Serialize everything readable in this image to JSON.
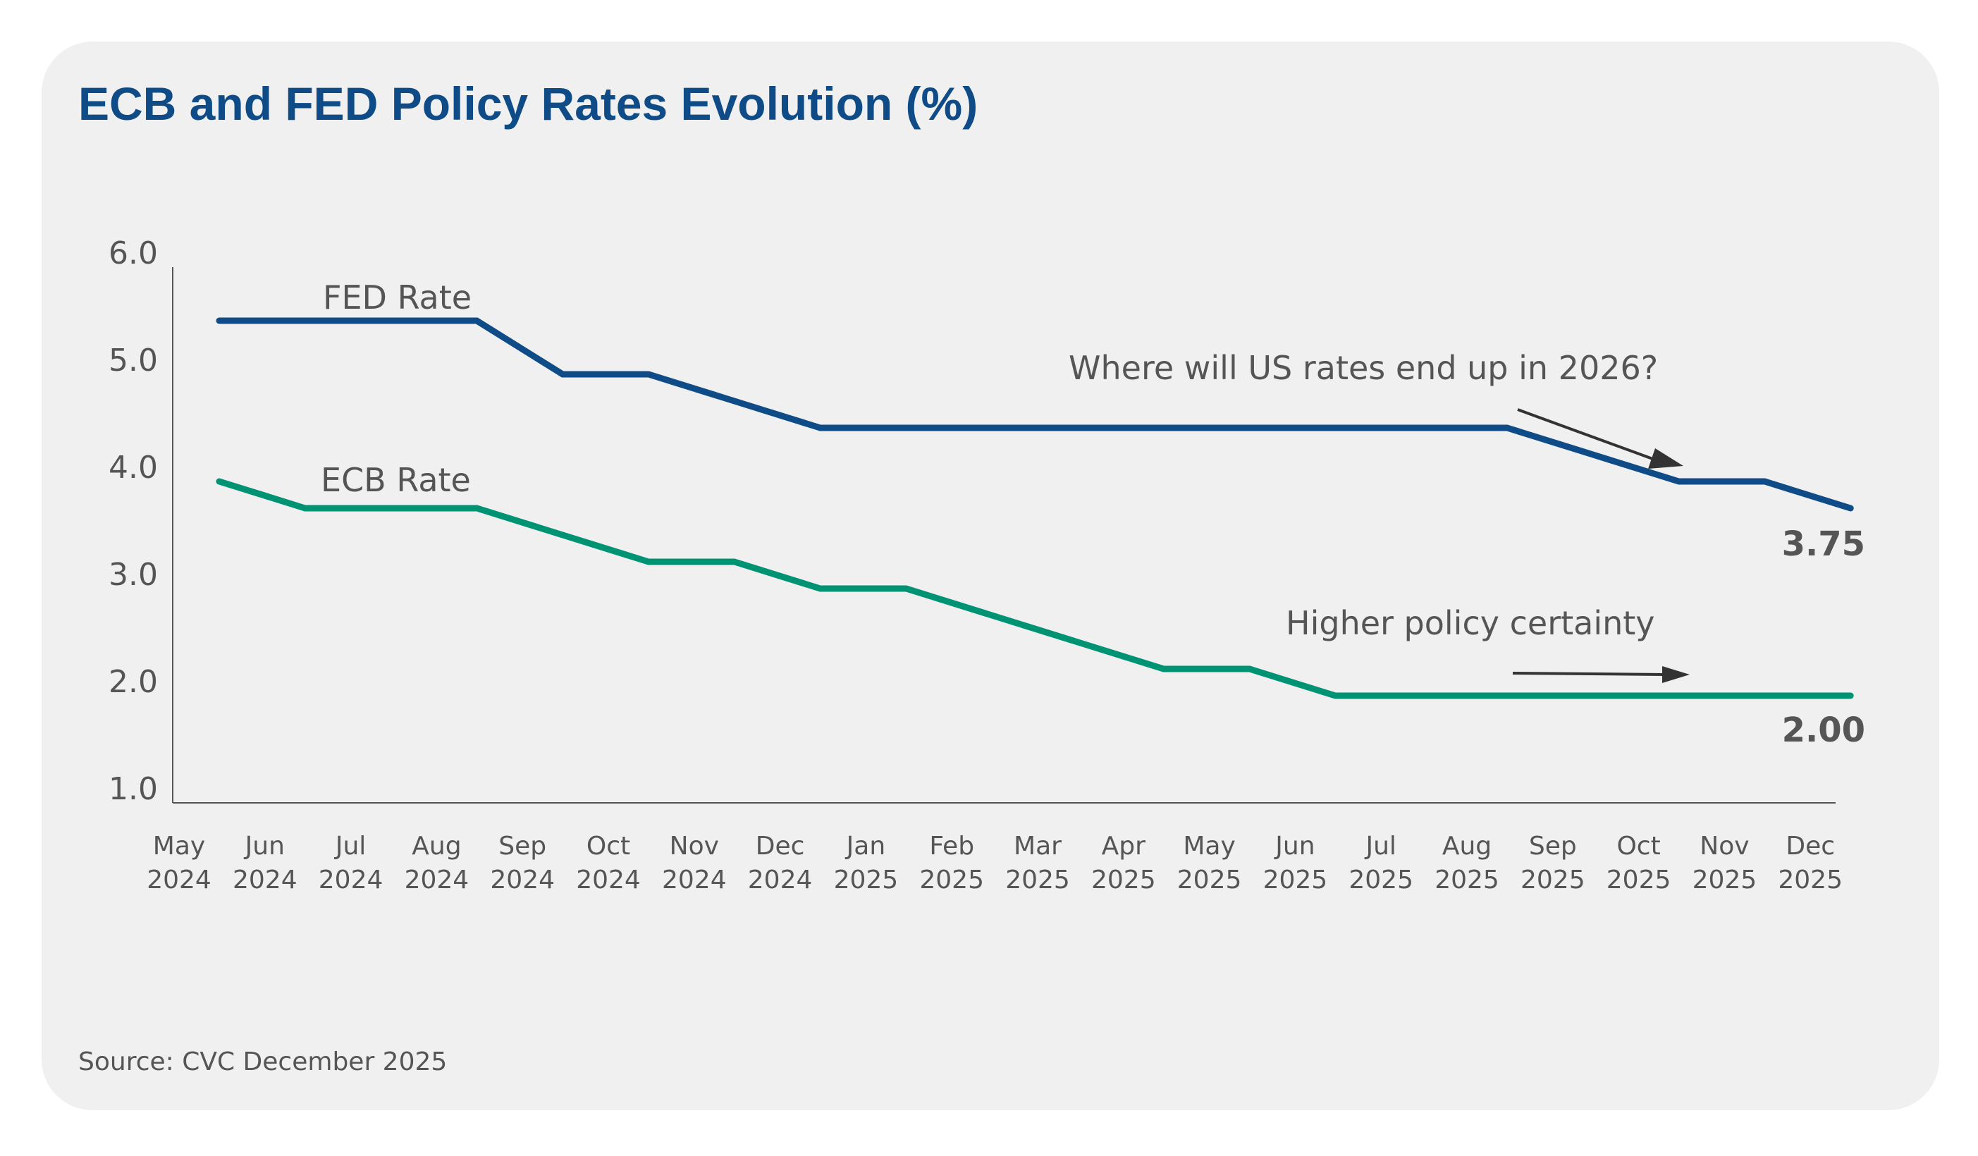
{
  "chart_data": {
    "type": "line",
    "title": "ECB and FED Policy Rates Evolution (%)",
    "xlabel": "",
    "ylabel": "",
    "ylim": [
      1.0,
      6.0
    ],
    "yticks": [
      "6.0",
      "5.0",
      "4.0",
      "3.0",
      "2.0",
      "1.0"
    ],
    "ytick_values": [
      6,
      5,
      4,
      3,
      2,
      1
    ],
    "grid": false,
    "categories": [
      {
        "month": "May",
        "year": "2024"
      },
      {
        "month": "Jun",
        "year": "2024"
      },
      {
        "month": "Jul",
        "year": "2024"
      },
      {
        "month": "Aug",
        "year": "2024"
      },
      {
        "month": "Sep",
        "year": "2024"
      },
      {
        "month": "Oct",
        "year": "2024"
      },
      {
        "month": "Nov",
        "year": "2024"
      },
      {
        "month": "Dec",
        "year": "2024"
      },
      {
        "month": "Jan",
        "year": "2025"
      },
      {
        "month": "Feb",
        "year": "2025"
      },
      {
        "month": "Mar",
        "year": "2025"
      },
      {
        "month": "Apr",
        "year": "2025"
      },
      {
        "month": "May",
        "year": "2025"
      },
      {
        "month": "Jun",
        "year": "2025"
      },
      {
        "month": "Jul",
        "year": "2025"
      },
      {
        "month": "Aug",
        "year": "2025"
      },
      {
        "month": "Sep",
        "year": "2025"
      },
      {
        "month": "Oct",
        "year": "2025"
      },
      {
        "month": "Nov",
        "year": "2025"
      },
      {
        "month": "Dec",
        "year": "2025"
      }
    ],
    "series": [
      {
        "name": "FED Rate",
        "color": "#0f4c87",
        "values": [
          5.5,
          5.5,
          5.5,
          5.5,
          5.0,
          5.0,
          4.75,
          4.5,
          4.5,
          4.5,
          4.5,
          4.5,
          4.5,
          4.5,
          4.5,
          4.5,
          4.25,
          4.0,
          4.0,
          3.75
        ],
        "end_label": "3.75"
      },
      {
        "name": "ECB Rate",
        "color": "#009373",
        "values": [
          4.0,
          3.75,
          3.75,
          3.75,
          3.5,
          3.25,
          3.25,
          3.0,
          3.0,
          2.75,
          2.5,
          2.25,
          2.25,
          2.0,
          2.0,
          2.0,
          2.0,
          2.0,
          2.0,
          2.0
        ],
        "end_label": "2.00"
      }
    ],
    "annotations": [
      {
        "text": "Where will US rates end up in 2026?",
        "arrow": "down-right"
      },
      {
        "text": "Higher policy certainty",
        "arrow": "right"
      }
    ],
    "legend": "inline-labels",
    "source": "Source: CVC December 2025"
  },
  "colors": {
    "card_background": "#f0f0f0",
    "axis": "#555555",
    "text": "#555555",
    "title": "#0f4c87",
    "arrow": "#333333"
  }
}
